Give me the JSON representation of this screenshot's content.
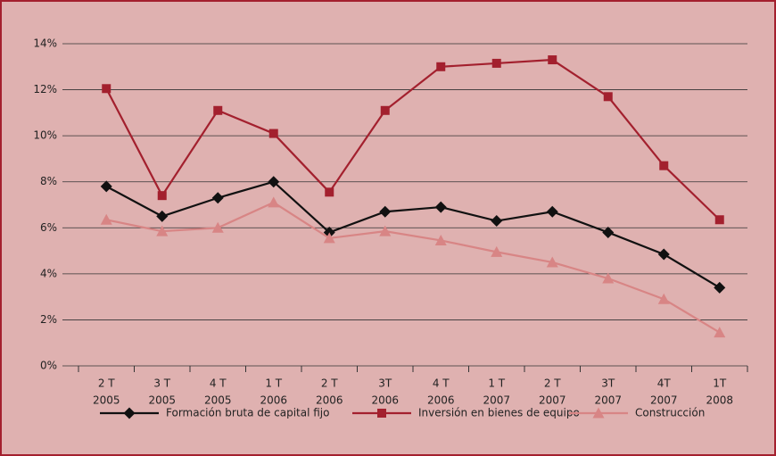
{
  "chart_data": {
    "type": "line",
    "categories": [
      [
        "2 T",
        "2005"
      ],
      [
        "3 T",
        "2005"
      ],
      [
        "4 T",
        "2005"
      ],
      [
        "1 T",
        "2006"
      ],
      [
        "2 T",
        "2006"
      ],
      [
        "3T",
        "2006"
      ],
      [
        "4 T",
        "2006"
      ],
      [
        "1 T",
        "2007"
      ],
      [
        "2 T",
        "2007"
      ],
      [
        "3T",
        "2007"
      ],
      [
        "4T",
        "2007"
      ],
      [
        "1T",
        "2008"
      ]
    ],
    "series": [
      {
        "name": "Formación bruta de capital fijo",
        "color": "#111111",
        "marker": "diamond",
        "values": [
          7.8,
          6.5,
          7.3,
          8.0,
          5.8,
          6.7,
          6.9,
          6.3,
          6.7,
          5.8,
          4.85,
          3.4
        ]
      },
      {
        "name": "Inversión en bienes de equipo",
        "color": "#a3202e",
        "marker": "square",
        "values": [
          12.05,
          7.4,
          11.1,
          10.1,
          7.55,
          11.1,
          13.0,
          13.15,
          13.3,
          11.7,
          8.7,
          6.35
        ]
      },
      {
        "name": "Construcción",
        "color": "#d88585",
        "marker": "triangle",
        "values": [
          6.35,
          5.85,
          6.0,
          7.1,
          5.55,
          5.85,
          5.45,
          4.95,
          4.5,
          3.8,
          2.9,
          1.45
        ]
      }
    ],
    "ylim": [
      0,
      14
    ],
    "yticks": [
      {
        "value": 0,
        "label": "0%"
      },
      {
        "value": 2,
        "label": "2%"
      },
      {
        "value": 4,
        "label": "4%"
      },
      {
        "value": 6,
        "label": "6%"
      },
      {
        "value": 8,
        "label": "8%"
      },
      {
        "value": 10,
        "label": "10%"
      },
      {
        "value": 12,
        "label": "12%"
      },
      {
        "value": 14,
        "label": "14%"
      }
    ],
    "grid": true,
    "legend": "bottom"
  }
}
